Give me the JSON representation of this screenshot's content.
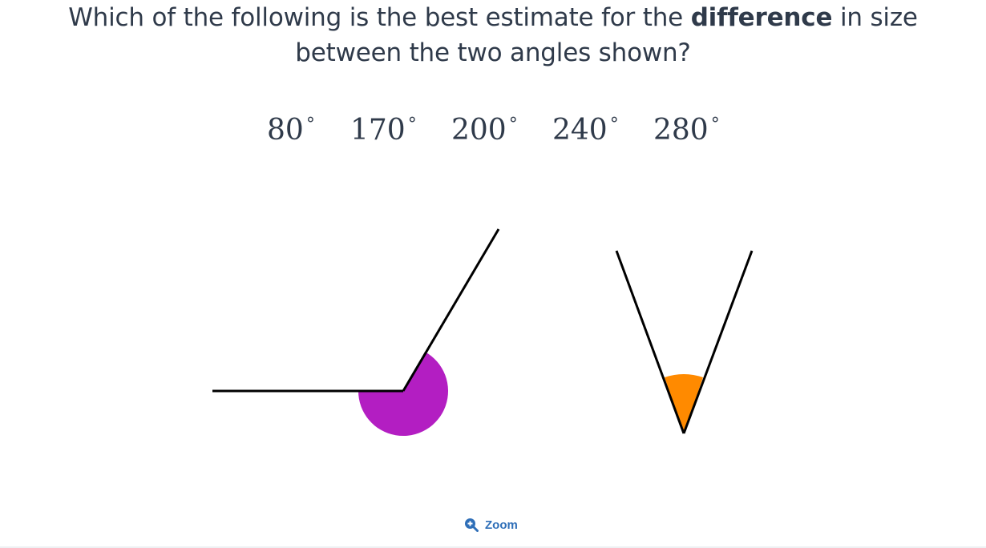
{
  "question": {
    "line1_before": "Which of the following is the best estimate for the ",
    "line1_bold": "difference",
    "line1_after": " in size",
    "line2": "between the two angles shown?"
  },
  "options": [
    {
      "value": "80",
      "unit": "°"
    },
    {
      "value": "170",
      "unit": "°"
    },
    {
      "value": "200",
      "unit": "°"
    },
    {
      "value": "240",
      "unit": "°"
    },
    {
      "value": "280",
      "unit": "°"
    }
  ],
  "figure": {
    "angle_left_color": "#b31ec2",
    "angle_right_color": "#ff8a00",
    "line_color": "#000000"
  },
  "zoom": {
    "label": "Zoom",
    "icon": "zoom-in-icon",
    "color": "#2f6fb8"
  }
}
